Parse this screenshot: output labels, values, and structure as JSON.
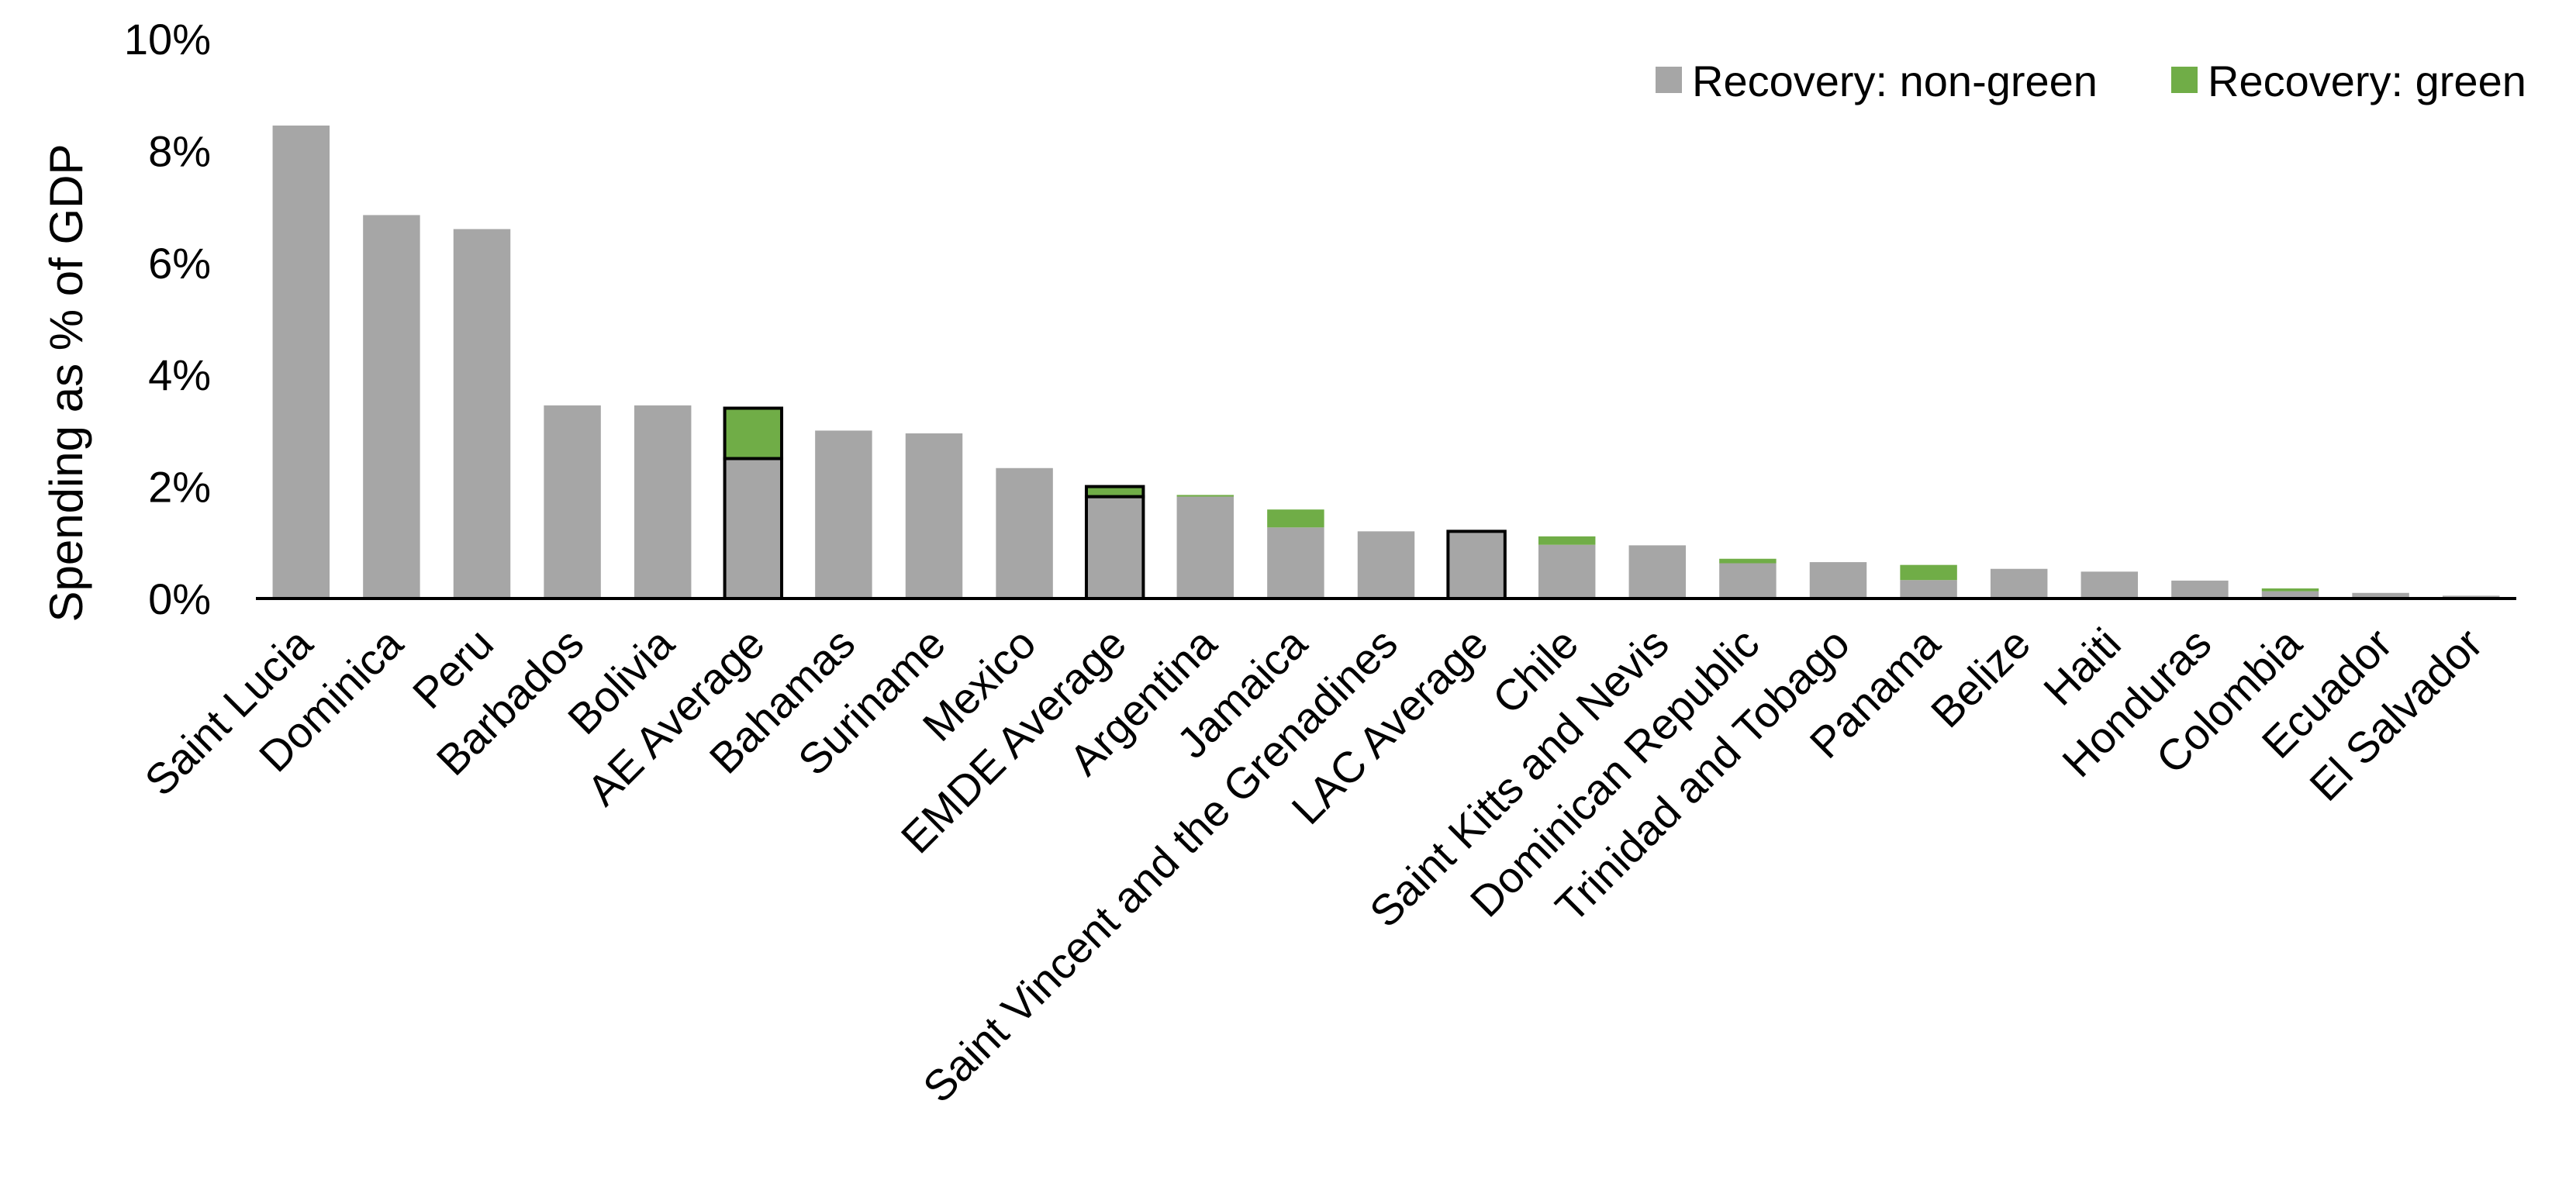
{
  "chart_data": {
    "type": "bar",
    "stacked": true,
    "ylabel": "Spending as % of GDP",
    "ylim": [
      0,
      10
    ],
    "ytick_values": [
      0,
      2,
      4,
      6,
      8,
      10
    ],
    "ytick_labels": [
      "0%",
      "2%",
      "4%",
      "6%",
      "8%",
      "10%"
    ],
    "grid": false,
    "legend_position": "top-right",
    "categories": [
      "Saint Lucia",
      "Dominica",
      "Peru",
      "Barbados",
      "Bolivia",
      "AE Average",
      "Bahamas",
      "Suriname",
      "Mexico",
      "EMDE Average",
      "Argentina",
      "Jamaica",
      "Saint Vincent and the Grenadines",
      "LAC Average",
      "Chile",
      "Saint Kitts and Nevis",
      "Dominican Republic",
      "Trinidad and Tobago",
      "Panama",
      "Belize",
      "Haiti",
      "Honduras",
      "Colombia",
      "Ecuador",
      "El Salvador"
    ],
    "highlighted_categories": [
      "AE Average",
      "EMDE Average",
      "LAC Average"
    ],
    "series": [
      {
        "name": "Recovery: non-green",
        "color": "#a6a6a6",
        "values": [
          8.45,
          6.85,
          6.6,
          3.45,
          3.45,
          2.5,
          3.0,
          2.95,
          2.33,
          1.82,
          1.82,
          1.27,
          1.2,
          1.2,
          0.96,
          0.95,
          0.63,
          0.65,
          0.33,
          0.53,
          0.48,
          0.32,
          0.13,
          0.1,
          0.05
        ]
      },
      {
        "name": "Recovery: green",
        "color": "#70ad47",
        "values": [
          0,
          0,
          0,
          0,
          0,
          0.9,
          0,
          0,
          0,
          0.18,
          0.03,
          0.32,
          0,
          0,
          0.15,
          0,
          0.08,
          0,
          0.27,
          0,
          0,
          0,
          0.05,
          0,
          0
        ]
      }
    ]
  }
}
